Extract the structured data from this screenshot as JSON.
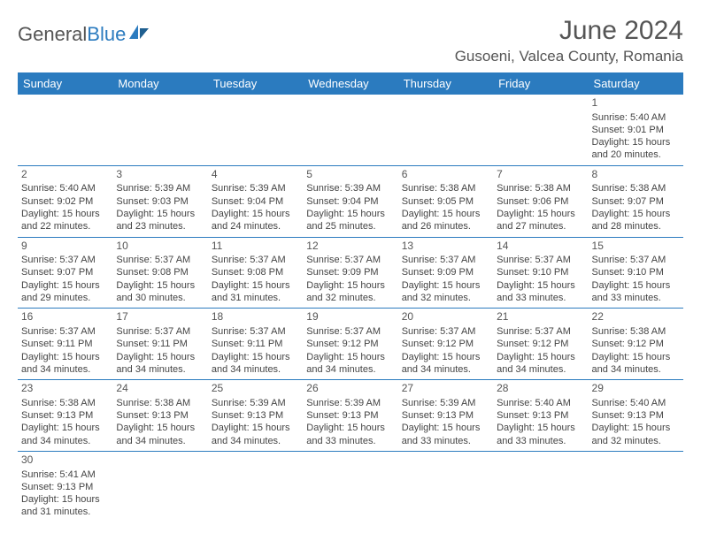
{
  "logo": {
    "main": "General",
    "accent": "Blue"
  },
  "title": "June 2024",
  "location": "Gusoeni, Valcea County, Romania",
  "colors": {
    "header_bg": "#2b7bbf",
    "header_fg": "#ffffff",
    "rule": "#2b7bbf",
    "text": "#444444"
  },
  "weekdays": [
    "Sunday",
    "Monday",
    "Tuesday",
    "Wednesday",
    "Thursday",
    "Friday",
    "Saturday"
  ],
  "grid": [
    [
      null,
      null,
      null,
      null,
      null,
      null,
      {
        "n": "1",
        "sr": "Sunrise: 5:40 AM",
        "ss": "Sunset: 9:01 PM",
        "d1": "Daylight: 15 hours",
        "d2": "and 20 minutes."
      }
    ],
    [
      {
        "n": "2",
        "sr": "Sunrise: 5:40 AM",
        "ss": "Sunset: 9:02 PM",
        "d1": "Daylight: 15 hours",
        "d2": "and 22 minutes."
      },
      {
        "n": "3",
        "sr": "Sunrise: 5:39 AM",
        "ss": "Sunset: 9:03 PM",
        "d1": "Daylight: 15 hours",
        "d2": "and 23 minutes."
      },
      {
        "n": "4",
        "sr": "Sunrise: 5:39 AM",
        "ss": "Sunset: 9:04 PM",
        "d1": "Daylight: 15 hours",
        "d2": "and 24 minutes."
      },
      {
        "n": "5",
        "sr": "Sunrise: 5:39 AM",
        "ss": "Sunset: 9:04 PM",
        "d1": "Daylight: 15 hours",
        "d2": "and 25 minutes."
      },
      {
        "n": "6",
        "sr": "Sunrise: 5:38 AM",
        "ss": "Sunset: 9:05 PM",
        "d1": "Daylight: 15 hours",
        "d2": "and 26 minutes."
      },
      {
        "n": "7",
        "sr": "Sunrise: 5:38 AM",
        "ss": "Sunset: 9:06 PM",
        "d1": "Daylight: 15 hours",
        "d2": "and 27 minutes."
      },
      {
        "n": "8",
        "sr": "Sunrise: 5:38 AM",
        "ss": "Sunset: 9:07 PM",
        "d1": "Daylight: 15 hours",
        "d2": "and 28 minutes."
      }
    ],
    [
      {
        "n": "9",
        "sr": "Sunrise: 5:37 AM",
        "ss": "Sunset: 9:07 PM",
        "d1": "Daylight: 15 hours",
        "d2": "and 29 minutes."
      },
      {
        "n": "10",
        "sr": "Sunrise: 5:37 AM",
        "ss": "Sunset: 9:08 PM",
        "d1": "Daylight: 15 hours",
        "d2": "and 30 minutes."
      },
      {
        "n": "11",
        "sr": "Sunrise: 5:37 AM",
        "ss": "Sunset: 9:08 PM",
        "d1": "Daylight: 15 hours",
        "d2": "and 31 minutes."
      },
      {
        "n": "12",
        "sr": "Sunrise: 5:37 AM",
        "ss": "Sunset: 9:09 PM",
        "d1": "Daylight: 15 hours",
        "d2": "and 32 minutes."
      },
      {
        "n": "13",
        "sr": "Sunrise: 5:37 AM",
        "ss": "Sunset: 9:09 PM",
        "d1": "Daylight: 15 hours",
        "d2": "and 32 minutes."
      },
      {
        "n": "14",
        "sr": "Sunrise: 5:37 AM",
        "ss": "Sunset: 9:10 PM",
        "d1": "Daylight: 15 hours",
        "d2": "and 33 minutes."
      },
      {
        "n": "15",
        "sr": "Sunrise: 5:37 AM",
        "ss": "Sunset: 9:10 PM",
        "d1": "Daylight: 15 hours",
        "d2": "and 33 minutes."
      }
    ],
    [
      {
        "n": "16",
        "sr": "Sunrise: 5:37 AM",
        "ss": "Sunset: 9:11 PM",
        "d1": "Daylight: 15 hours",
        "d2": "and 34 minutes."
      },
      {
        "n": "17",
        "sr": "Sunrise: 5:37 AM",
        "ss": "Sunset: 9:11 PM",
        "d1": "Daylight: 15 hours",
        "d2": "and 34 minutes."
      },
      {
        "n": "18",
        "sr": "Sunrise: 5:37 AM",
        "ss": "Sunset: 9:11 PM",
        "d1": "Daylight: 15 hours",
        "d2": "and 34 minutes."
      },
      {
        "n": "19",
        "sr": "Sunrise: 5:37 AM",
        "ss": "Sunset: 9:12 PM",
        "d1": "Daylight: 15 hours",
        "d2": "and 34 minutes."
      },
      {
        "n": "20",
        "sr": "Sunrise: 5:37 AM",
        "ss": "Sunset: 9:12 PM",
        "d1": "Daylight: 15 hours",
        "d2": "and 34 minutes."
      },
      {
        "n": "21",
        "sr": "Sunrise: 5:37 AM",
        "ss": "Sunset: 9:12 PM",
        "d1": "Daylight: 15 hours",
        "d2": "and 34 minutes."
      },
      {
        "n": "22",
        "sr": "Sunrise: 5:38 AM",
        "ss": "Sunset: 9:12 PM",
        "d1": "Daylight: 15 hours",
        "d2": "and 34 minutes."
      }
    ],
    [
      {
        "n": "23",
        "sr": "Sunrise: 5:38 AM",
        "ss": "Sunset: 9:13 PM",
        "d1": "Daylight: 15 hours",
        "d2": "and 34 minutes."
      },
      {
        "n": "24",
        "sr": "Sunrise: 5:38 AM",
        "ss": "Sunset: 9:13 PM",
        "d1": "Daylight: 15 hours",
        "d2": "and 34 minutes."
      },
      {
        "n": "25",
        "sr": "Sunrise: 5:39 AM",
        "ss": "Sunset: 9:13 PM",
        "d1": "Daylight: 15 hours",
        "d2": "and 34 minutes."
      },
      {
        "n": "26",
        "sr": "Sunrise: 5:39 AM",
        "ss": "Sunset: 9:13 PM",
        "d1": "Daylight: 15 hours",
        "d2": "and 33 minutes."
      },
      {
        "n": "27",
        "sr": "Sunrise: 5:39 AM",
        "ss": "Sunset: 9:13 PM",
        "d1": "Daylight: 15 hours",
        "d2": "and 33 minutes."
      },
      {
        "n": "28",
        "sr": "Sunrise: 5:40 AM",
        "ss": "Sunset: 9:13 PM",
        "d1": "Daylight: 15 hours",
        "d2": "and 33 minutes."
      },
      {
        "n": "29",
        "sr": "Sunrise: 5:40 AM",
        "ss": "Sunset: 9:13 PM",
        "d1": "Daylight: 15 hours",
        "d2": "and 32 minutes."
      }
    ],
    [
      {
        "n": "30",
        "sr": "Sunrise: 5:41 AM",
        "ss": "Sunset: 9:13 PM",
        "d1": "Daylight: 15 hours",
        "d2": "and 31 minutes."
      },
      null,
      null,
      null,
      null,
      null,
      null
    ]
  ]
}
